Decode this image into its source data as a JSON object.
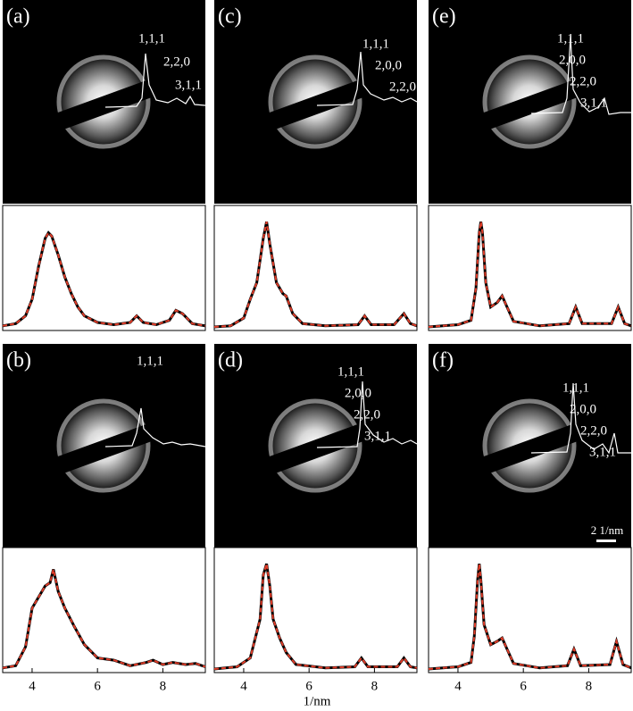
{
  "chart_data": [
    {
      "type": "line",
      "panel": "(a)",
      "peak_labels": [
        "1,1,1",
        "2,2,0",
        "3,1,1"
      ],
      "xlim": [
        3.1,
        9.3
      ],
      "x": [
        3.1,
        3.5,
        3.8,
        4.0,
        4.2,
        4.4,
        4.5,
        4.6,
        4.8,
        5.0,
        5.2,
        5.4,
        5.6,
        6.0,
        6.5,
        7.0,
        7.2,
        7.4,
        7.8,
        8.2,
        8.4,
        8.6,
        8.9,
        9.3
      ],
      "series": [
        {
          "color": "#e03c28",
          "values": [
            1,
            3,
            10,
            25,
            55,
            80,
            85,
            82,
            65,
            45,
            30,
            18,
            10,
            4,
            2,
            4,
            10,
            4,
            2,
            6,
            15,
            12,
            3,
            1
          ]
        }
      ]
    },
    {
      "type": "line",
      "panel": "(b)",
      "peak_labels": [
        "1,1,1"
      ],
      "xlim": [
        3.1,
        9.3
      ],
      "xticks": [
        4,
        6,
        8
      ],
      "x": [
        3.1,
        3.5,
        3.8,
        4.0,
        4.2,
        4.4,
        4.55,
        4.65,
        4.8,
        5.0,
        5.3,
        5.6,
        6.0,
        6.5,
        7.0,
        7.5,
        7.7,
        8.0,
        8.3,
        8.7,
        9.0,
        9.3
      ],
      "series": [
        {
          "color": "#e03c28",
          "values": [
            1,
            3,
            20,
            55,
            65,
            75,
            78,
            90,
            70,
            55,
            38,
            22,
            10,
            8,
            3,
            6,
            8,
            4,
            6,
            4,
            5,
            2
          ]
        }
      ]
    },
    {
      "type": "line",
      "panel": "(c)",
      "peak_labels": [
        "1,1,1",
        "2,0,0",
        "2,2,0"
      ],
      "xlim": [
        3.1,
        9.3
      ],
      "x": [
        3.1,
        3.6,
        4.0,
        4.2,
        4.4,
        4.6,
        4.7,
        4.8,
        5.0,
        5.2,
        5.3,
        5.5,
        5.8,
        6.5,
        7.5,
        7.7,
        7.9,
        8.6,
        8.9,
        9.1,
        9.3
      ],
      "series": [
        {
          "color": "#e03c28",
          "values": [
            0,
            1,
            8,
            25,
            40,
            80,
            95,
            75,
            40,
            30,
            28,
            12,
            3,
            1,
            2,
            10,
            2,
            2,
            12,
            3,
            1
          ]
        }
      ]
    },
    {
      "type": "line",
      "panel": "(d)",
      "peak_labels": [
        "1,1,1",
        "2,0,0",
        "2,2,0",
        "3,1,1"
      ],
      "xlim": [
        3.1,
        9.3
      ],
      "xticks": [
        4,
        6,
        8
      ],
      "xlabel": "1/nm",
      "x": [
        3.1,
        3.8,
        4.2,
        4.5,
        4.6,
        4.7,
        4.8,
        4.9,
        5.1,
        5.3,
        5.6,
        6.5,
        7.4,
        7.6,
        7.8,
        8.7,
        8.9,
        9.1,
        9.3
      ],
      "series": [
        {
          "color": "#e03c28",
          "values": [
            0,
            2,
            10,
            45,
            85,
            95,
            75,
            45,
            28,
            15,
            4,
            1,
            2,
            10,
            2,
            2,
            10,
            2,
            1
          ]
        }
      ]
    },
    {
      "type": "line",
      "panel": "(e)",
      "peak_labels": [
        "1,1,1",
        "2,0,0",
        "2,2,0",
        "3,1,1"
      ],
      "xlim": [
        3.1,
        9.3
      ],
      "x": [
        3.1,
        4.0,
        4.4,
        4.55,
        4.65,
        4.7,
        4.75,
        4.85,
        5.0,
        5.2,
        5.35,
        5.5,
        5.7,
        6.5,
        7.4,
        7.6,
        7.8,
        8.7,
        8.9,
        9.1,
        9.3
      ],
      "series": [
        {
          "color": "#e03c28",
          "values": [
            0,
            2,
            6,
            35,
            85,
            95,
            85,
            40,
            18,
            22,
            28,
            18,
            5,
            1,
            3,
            18,
            3,
            3,
            18,
            3,
            1
          ]
        }
      ]
    },
    {
      "type": "line",
      "panel": "(f)",
      "peak_labels": [
        "1,1,1",
        "2,0,0",
        "2,2,0",
        "3,1,1"
      ],
      "scale_bar": "2 1/nm",
      "xlim": [
        3.1,
        9.3
      ],
      "xticks": [
        4,
        6,
        8
      ],
      "x": [
        3.1,
        4.0,
        4.4,
        4.5,
        4.6,
        4.65,
        4.7,
        4.8,
        5.0,
        5.2,
        5.35,
        5.5,
        5.7,
        6.5,
        7.35,
        7.55,
        7.75,
        8.65,
        8.85,
        9.05,
        9.3
      ],
      "series": [
        {
          "color": "#e03c28",
          "values": [
            0,
            2,
            6,
            30,
            80,
            95,
            80,
            40,
            22,
            25,
            28,
            18,
            5,
            1,
            3,
            18,
            3,
            4,
            25,
            4,
            1
          ]
        }
      ]
    }
  ]
}
